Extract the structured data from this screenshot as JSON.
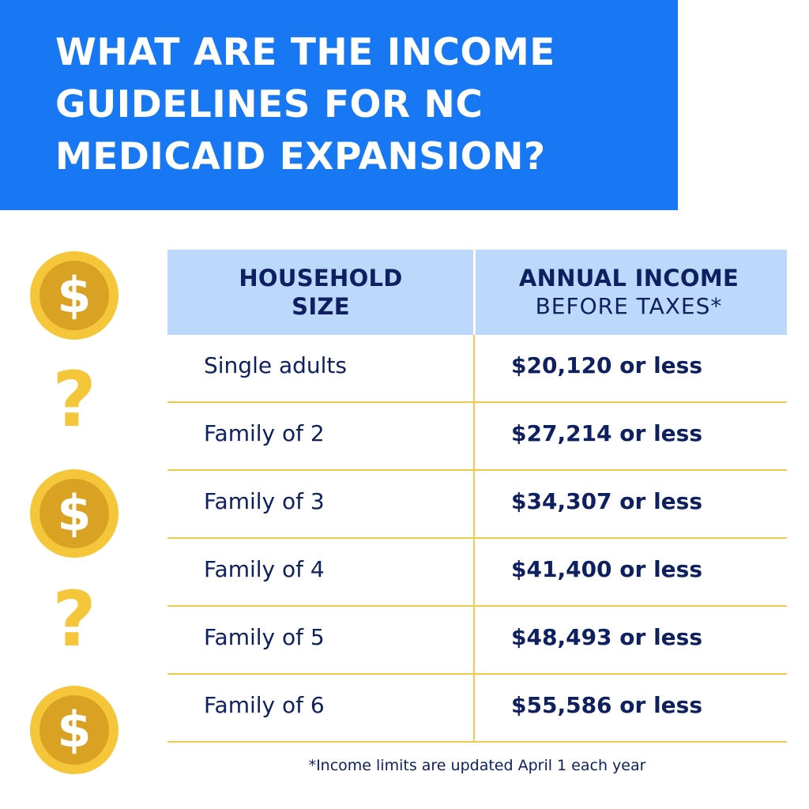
{
  "title": {
    "line1": "WHAT ARE THE INCOME",
    "line2": "GUIDELINES FOR NC",
    "line3": "MEDICAID EXPANSION?"
  },
  "decorations": {
    "coin_symbol": "$",
    "question_symbol": "?",
    "coin_icon": "dollar-coin-icon",
    "question_icon": "question-mark-icon",
    "colors": {
      "banner": "#1877f2",
      "coin_outer": "#f5c53a",
      "coin_inner": "#d9a223",
      "header_bg": "#bcd9fb",
      "divider": "#f2c94c",
      "text": "#0f2060"
    }
  },
  "table": {
    "headers": {
      "col1_line1": "HOUSEHOLD",
      "col1_line2": "SIZE",
      "col2_line1": "ANNUAL INCOME",
      "col2_line2": "BEFORE TAXES*"
    },
    "rows": [
      {
        "size": "Single adults",
        "income": "$20,120 or less"
      },
      {
        "size": "Family of 2",
        "income": "$27,214 or less"
      },
      {
        "size": "Family of 3",
        "income": "$34,307 or less"
      },
      {
        "size": "Family of 4",
        "income": "$41,400 or less"
      },
      {
        "size": "Family of 5",
        "income": "$48,493 or less"
      },
      {
        "size": "Family of 6",
        "income": "$55,586 or less"
      }
    ]
  },
  "footnote": "*Income limits are updated April 1 each year"
}
